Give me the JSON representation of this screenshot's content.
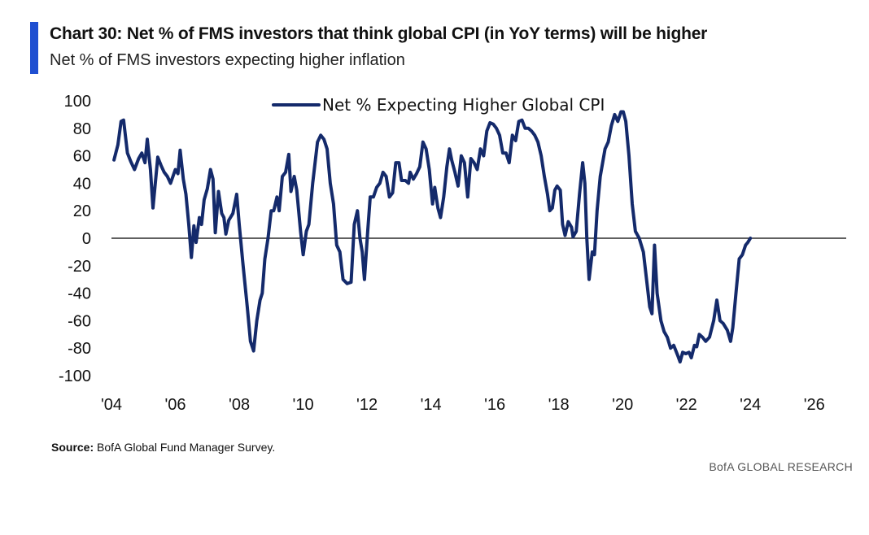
{
  "header": {
    "title": "Chart 30: Net % of FMS investors that think global CPI (in YoY terms) will be higher",
    "subtitle": "Net % of FMS investors expecting higher inflation",
    "accent_color": "#1f4fd1"
  },
  "footer": {
    "source_label": "Source:",
    "source_text": "BofA Global Fund Manager Survey.",
    "brand": "BofA GLOBAL RESEARCH"
  },
  "chart_data": {
    "type": "line",
    "title": "",
    "xlabel": "",
    "ylabel": "",
    "xlim": [
      2004,
      2027
    ],
    "ylim": [
      -100,
      100
    ],
    "y_ticks": [
      100,
      80,
      60,
      40,
      20,
      0,
      -20,
      -40,
      -60,
      -80,
      -100
    ],
    "x_ticks": [
      2004,
      2006,
      2008,
      2010,
      2012,
      2014,
      2016,
      2018,
      2020,
      2022,
      2024,
      2026
    ],
    "x_tick_labels": [
      "'04",
      "'06",
      "'08",
      "'10",
      "'12",
      "'14",
      "'16",
      "'18",
      "'20",
      "'22",
      "'24",
      "'26"
    ],
    "zero_line": true,
    "grid": false,
    "legend_position": "top-center",
    "series": [
      {
        "name": "Net % Expecting Higher Global CPI",
        "color": "#142a6b",
        "points": [
          [
            2004.08,
            57
          ],
          [
            2004.2,
            68
          ],
          [
            2004.3,
            85
          ],
          [
            2004.38,
            86
          ],
          [
            2004.5,
            62
          ],
          [
            2004.6,
            56
          ],
          [
            2004.72,
            50
          ],
          [
            2004.85,
            58
          ],
          [
            2004.95,
            62
          ],
          [
            2005.05,
            55
          ],
          [
            2005.12,
            72
          ],
          [
            2005.22,
            50
          ],
          [
            2005.3,
            22
          ],
          [
            2005.45,
            59
          ],
          [
            2005.55,
            53
          ],
          [
            2005.65,
            48
          ],
          [
            2005.75,
            45
          ],
          [
            2005.85,
            40
          ],
          [
            2006.0,
            50
          ],
          [
            2006.08,
            47
          ],
          [
            2006.15,
            64
          ],
          [
            2006.25,
            43
          ],
          [
            2006.33,
            32
          ],
          [
            2006.42,
            10
          ],
          [
            2006.5,
            -14
          ],
          [
            2006.58,
            9
          ],
          [
            2006.65,
            -3
          ],
          [
            2006.75,
            15
          ],
          [
            2006.82,
            10
          ],
          [
            2006.9,
            28
          ],
          [
            2007.0,
            36
          ],
          [
            2007.1,
            50
          ],
          [
            2007.18,
            43
          ],
          [
            2007.25,
            4
          ],
          [
            2007.35,
            34
          ],
          [
            2007.45,
            18
          ],
          [
            2007.52,
            15
          ],
          [
            2007.58,
            3
          ],
          [
            2007.67,
            13
          ],
          [
            2007.8,
            18
          ],
          [
            2007.92,
            32
          ],
          [
            2008.0,
            10
          ],
          [
            2008.12,
            -20
          ],
          [
            2008.25,
            -50
          ],
          [
            2008.35,
            -75
          ],
          [
            2008.45,
            -82
          ],
          [
            2008.55,
            -60
          ],
          [
            2008.65,
            -45
          ],
          [
            2008.72,
            -40
          ],
          [
            2008.8,
            -15
          ],
          [
            2008.9,
            0
          ],
          [
            2009.0,
            20
          ],
          [
            2009.08,
            20
          ],
          [
            2009.18,
            30
          ],
          [
            2009.25,
            20
          ],
          [
            2009.35,
            45
          ],
          [
            2009.45,
            48
          ],
          [
            2009.55,
            61
          ],
          [
            2009.62,
            34
          ],
          [
            2009.72,
            45
          ],
          [
            2009.8,
            35
          ],
          [
            2009.92,
            5
          ],
          [
            2010.0,
            -12
          ],
          [
            2010.1,
            5
          ],
          [
            2010.18,
            10
          ],
          [
            2010.3,
            40
          ],
          [
            2010.45,
            70
          ],
          [
            2010.55,
            75
          ],
          [
            2010.65,
            72
          ],
          [
            2010.75,
            65
          ],
          [
            2010.85,
            40
          ],
          [
            2010.95,
            25
          ],
          [
            2011.05,
            -5
          ],
          [
            2011.15,
            -10
          ],
          [
            2011.25,
            -30
          ],
          [
            2011.38,
            -33
          ],
          [
            2011.5,
            -32
          ],
          [
            2011.6,
            10
          ],
          [
            2011.7,
            20
          ],
          [
            2011.78,
            0
          ],
          [
            2011.85,
            -10
          ],
          [
            2011.92,
            -30
          ],
          [
            2012.02,
            5
          ],
          [
            2012.1,
            30
          ],
          [
            2012.2,
            30
          ],
          [
            2012.3,
            37
          ],
          [
            2012.4,
            40
          ],
          [
            2012.5,
            48
          ],
          [
            2012.6,
            45
          ],
          [
            2012.7,
            30
          ],
          [
            2012.8,
            33
          ],
          [
            2012.9,
            55
          ],
          [
            2013.0,
            55
          ],
          [
            2013.08,
            42
          ],
          [
            2013.2,
            42
          ],
          [
            2013.3,
            40
          ],
          [
            2013.35,
            48
          ],
          [
            2013.45,
            43
          ],
          [
            2013.55,
            47
          ],
          [
            2013.65,
            52
          ],
          [
            2013.75,
            70
          ],
          [
            2013.85,
            65
          ],
          [
            2013.95,
            50
          ],
          [
            2014.05,
            25
          ],
          [
            2014.12,
            37
          ],
          [
            2014.22,
            22
          ],
          [
            2014.3,
            15
          ],
          [
            2014.4,
            30
          ],
          [
            2014.5,
            52
          ],
          [
            2014.58,
            65
          ],
          [
            2014.65,
            57
          ],
          [
            2014.75,
            48
          ],
          [
            2014.85,
            38
          ],
          [
            2014.95,
            60
          ],
          [
            2015.05,
            55
          ],
          [
            2015.15,
            30
          ],
          [
            2015.25,
            58
          ],
          [
            2015.35,
            55
          ],
          [
            2015.45,
            50
          ],
          [
            2015.55,
            65
          ],
          [
            2015.65,
            60
          ],
          [
            2015.75,
            78
          ],
          [
            2015.85,
            84
          ],
          [
            2015.95,
            83
          ],
          [
            2016.05,
            80
          ],
          [
            2016.15,
            75
          ],
          [
            2016.25,
            62
          ],
          [
            2016.35,
            62
          ],
          [
            2016.45,
            55
          ],
          [
            2016.55,
            75
          ],
          [
            2016.65,
            71
          ],
          [
            2016.75,
            85
          ],
          [
            2016.85,
            86
          ],
          [
            2016.95,
            80
          ],
          [
            2017.05,
            80
          ],
          [
            2017.15,
            78
          ],
          [
            2017.25,
            75
          ],
          [
            2017.35,
            70
          ],
          [
            2017.45,
            60
          ],
          [
            2017.55,
            45
          ],
          [
            2017.65,
            32
          ],
          [
            2017.72,
            20
          ],
          [
            2017.8,
            22
          ],
          [
            2017.88,
            35
          ],
          [
            2017.95,
            38
          ],
          [
            2018.05,
            35
          ],
          [
            2018.12,
            10
          ],
          [
            2018.2,
            2
          ],
          [
            2018.3,
            12
          ],
          [
            2018.4,
            8
          ],
          [
            2018.45,
            1
          ],
          [
            2018.55,
            5
          ],
          [
            2018.65,
            32
          ],
          [
            2018.75,
            55
          ],
          [
            2018.82,
            40
          ],
          [
            2018.88,
            0
          ],
          [
            2018.95,
            -30
          ],
          [
            2019.05,
            -10
          ],
          [
            2019.12,
            -12
          ],
          [
            2019.2,
            20
          ],
          [
            2019.3,
            45
          ],
          [
            2019.45,
            65
          ],
          [
            2019.55,
            70
          ],
          [
            2019.65,
            82
          ],
          [
            2019.75,
            90
          ],
          [
            2019.85,
            85
          ],
          [
            2019.95,
            92
          ],
          [
            2020.02,
            92
          ],
          [
            2020.1,
            85
          ],
          [
            2020.2,
            60
          ],
          [
            2020.3,
            25
          ],
          [
            2020.4,
            5
          ],
          [
            2020.52,
            0
          ],
          [
            2020.65,
            -10
          ],
          [
            2020.75,
            -30
          ],
          [
            2020.85,
            -50
          ],
          [
            2020.92,
            -55
          ],
          [
            2021.0,
            -5
          ],
          [
            2021.08,
            -40
          ],
          [
            2021.2,
            -60
          ],
          [
            2021.3,
            -68
          ],
          [
            2021.4,
            -72
          ],
          [
            2021.5,
            -80
          ],
          [
            2021.6,
            -78
          ],
          [
            2021.72,
            -85
          ],
          [
            2021.8,
            -90
          ],
          [
            2021.88,
            -83
          ],
          [
            2021.98,
            -84
          ],
          [
            2022.08,
            -83
          ],
          [
            2022.15,
            -87
          ],
          [
            2022.25,
            -78
          ],
          [
            2022.32,
            -79
          ],
          [
            2022.4,
            -70
          ],
          [
            2022.5,
            -72
          ],
          [
            2022.6,
            -75
          ],
          [
            2022.72,
            -72
          ],
          [
            2022.85,
            -60
          ],
          [
            2022.95,
            -45
          ],
          [
            2023.05,
            -60
          ],
          [
            2023.15,
            -62
          ],
          [
            2023.28,
            -67
          ],
          [
            2023.38,
            -75
          ],
          [
            2023.45,
            -65
          ],
          [
            2023.55,
            -40
          ],
          [
            2023.65,
            -15
          ],
          [
            2023.75,
            -12
          ],
          [
            2023.85,
            -5
          ],
          [
            2023.92,
            -3
          ],
          [
            2024.0,
            0
          ]
        ]
      }
    ]
  }
}
